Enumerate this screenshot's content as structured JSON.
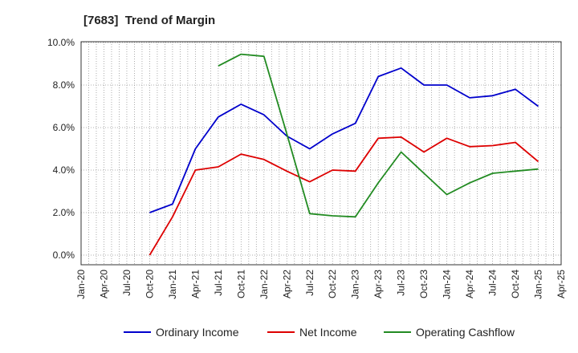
{
  "chart_data": {
    "type": "line",
    "title": "[7683]  Trend of Margin",
    "xlabel": "",
    "ylabel": "",
    "x_ticks": [
      "Jan-20",
      "Apr-20",
      "Jul-20",
      "Oct-20",
      "Jan-21",
      "Apr-21",
      "Jul-21",
      "Oct-21",
      "Jan-22",
      "Apr-22",
      "Jul-22",
      "Oct-22",
      "Jan-23",
      "Apr-23",
      "Jul-23",
      "Oct-23",
      "Jan-24",
      "Apr-24",
      "Jul-24",
      "Oct-24",
      "Jan-25",
      "Apr-25"
    ],
    "y_ticks": [
      "0.0%",
      "2.0%",
      "4.0%",
      "6.0%",
      "8.0%",
      "10.0%"
    ],
    "ylim": [
      0,
      10
    ],
    "y_unit": "%",
    "grid": true,
    "legend_position": "bottom",
    "series": [
      {
        "name": "Ordinary Income",
        "color": "#0000cc",
        "x": [
          "Oct-20",
          "Jan-21",
          "Apr-21",
          "Jul-21",
          "Oct-21",
          "Jan-22",
          "Apr-22",
          "Jul-22",
          "Oct-22",
          "Jan-23",
          "Apr-23",
          "Jul-23",
          "Oct-23",
          "Jan-24",
          "Apr-24",
          "Jul-24",
          "Oct-24",
          "Jan-25"
        ],
        "values": [
          2.0,
          2.4,
          5.0,
          6.5,
          7.1,
          6.6,
          5.6,
          5.0,
          5.7,
          6.2,
          8.4,
          8.8,
          8.0,
          8.0,
          7.4,
          7.5,
          7.8,
          7.0
        ]
      },
      {
        "name": "Net Income",
        "color": "#dd0000",
        "x": [
          "Oct-20",
          "Jan-21",
          "Apr-21",
          "Jul-21",
          "Oct-21",
          "Jan-22",
          "Apr-22",
          "Jul-22",
          "Oct-22",
          "Jan-23",
          "Apr-23",
          "Jul-23",
          "Oct-23",
          "Jan-24",
          "Apr-24",
          "Jul-24",
          "Oct-24",
          "Jan-25"
        ],
        "values": [
          0.0,
          1.8,
          4.0,
          4.15,
          4.75,
          4.5,
          3.95,
          3.45,
          4.0,
          3.95,
          5.5,
          5.55,
          4.85,
          5.5,
          5.1,
          5.15,
          5.3,
          4.4
        ]
      },
      {
        "name": "Operating Cashflow",
        "color": "#228b22",
        "x": [
          "Jul-21",
          "Oct-21",
          "Jan-22",
          "Apr-22",
          "Jul-22",
          "Oct-22",
          "Jan-23",
          "Apr-23",
          "Jul-23",
          "Oct-23",
          "Jan-24",
          "Apr-24",
          "Jul-24",
          "Oct-24",
          "Jan-25"
        ],
        "values": [
          8.9,
          9.45,
          9.35,
          5.7,
          1.95,
          1.85,
          1.8,
          3.4,
          4.85,
          3.85,
          2.85,
          3.4,
          3.85,
          3.95,
          4.05
        ]
      }
    ]
  }
}
